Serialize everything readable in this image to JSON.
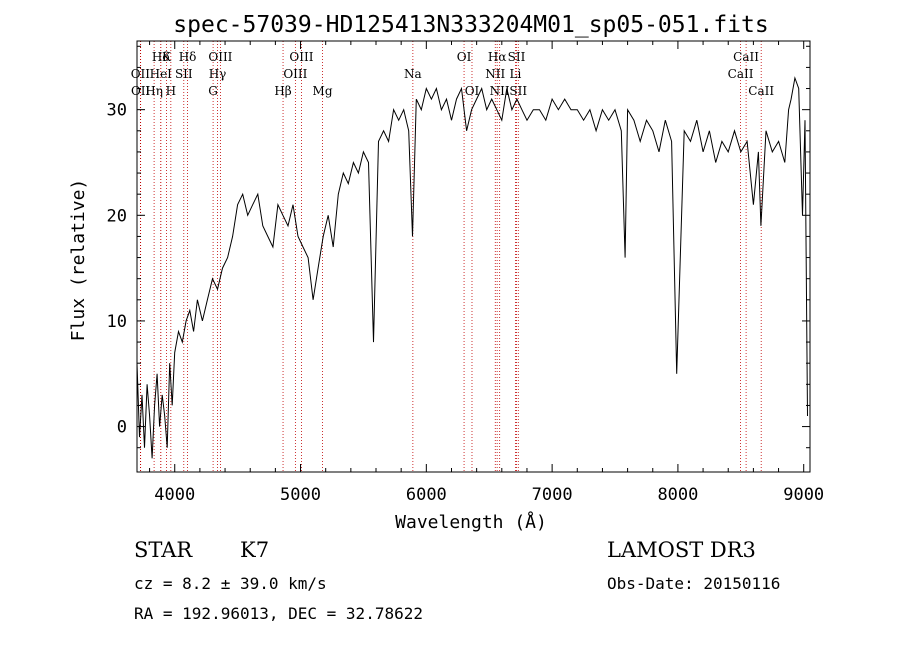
{
  "chart_data": {
    "type": "line",
    "title": "spec-57039-HD125413N333204M01_sp05-051.fits",
    "xlabel": "Wavelength (Å)",
    "ylabel": "Flux (relative)",
    "xlim": [
      3700,
      9050
    ],
    "ylim": [
      -4.3,
      36.5
    ],
    "xticks": [
      4000,
      5000,
      6000,
      7000,
      8000,
      9000
    ],
    "yticks": [
      0,
      10,
      20,
      30
    ],
    "grid": false,
    "series": [
      {
        "x": [
          3700,
          3720,
          3740,
          3760,
          3780,
          3800,
          3820,
          3840,
          3860,
          3880,
          3900,
          3920,
          3940,
          3960,
          3980,
          4000,
          4030,
          4060,
          4090,
          4120,
          4150,
          4180,
          4220,
          4260,
          4300,
          4340,
          4380,
          4420,
          4460,
          4500,
          4540,
          4580,
          4620,
          4660,
          4700,
          4740,
          4780,
          4820,
          4860,
          4900,
          4940,
          4980,
          5020,
          5060,
          5100,
          5140,
          5180,
          5220,
          5260,
          5300,
          5340,
          5380,
          5420,
          5460,
          5500,
          5540,
          5580,
          5620,
          5660,
          5700,
          5740,
          5780,
          5820,
          5860,
          5890,
          5920,
          5960,
          6000,
          6040,
          6080,
          6120,
          6160,
          6200,
          6240,
          6280,
          6320,
          6360,
          6400,
          6440,
          6480,
          6520,
          6560,
          6600,
          6640,
          6680,
          6720,
          6760,
          6800,
          6850,
          6900,
          6950,
          7000,
          7050,
          7100,
          7150,
          7200,
          7250,
          7300,
          7350,
          7400,
          7450,
          7500,
          7550,
          7580,
          7600,
          7650,
          7700,
          7750,
          7800,
          7850,
          7900,
          7950,
          7990,
          8050,
          8100,
          8150,
          8200,
          8250,
          8300,
          8350,
          8400,
          8450,
          8500,
          8550,
          8600,
          8640,
          8660,
          8700,
          8750,
          8800,
          8850,
          8880,
          8900,
          8930,
          8960,
          8990,
          9010,
          9030
        ],
        "y": [
          6,
          -1,
          3,
          -2,
          4,
          1,
          -3,
          2,
          5,
          0,
          3,
          1,
          -2,
          6,
          2,
          7,
          9,
          8,
          10,
          11,
          9,
          12,
          10,
          12,
          14,
          13,
          15,
          16,
          18,
          21,
          22,
          20,
          21,
          22,
          19,
          18,
          17,
          21,
          20,
          19,
          21,
          18,
          17,
          16,
          12,
          15,
          18,
          20,
          17,
          22,
          24,
          23,
          25,
          24,
          26,
          25,
          8,
          27,
          28,
          27,
          30,
          29,
          30,
          28,
          18,
          31,
          30,
          32,
          31,
          32,
          30,
          31,
          29,
          31,
          32,
          28,
          30,
          31,
          32,
          30,
          31,
          30,
          29,
          32,
          30,
          31,
          30,
          29,
          30,
          30,
          29,
          31,
          30,
          31,
          30,
          30,
          29,
          30,
          28,
          30,
          29,
          30,
          28,
          16,
          30,
          29,
          27,
          29,
          28,
          26,
          29,
          27,
          5,
          28,
          27,
          29,
          26,
          28,
          25,
          27,
          26,
          28,
          26,
          27,
          21,
          26,
          19,
          28,
          26,
          27,
          25,
          30,
          31,
          33,
          32,
          20,
          29,
          1
        ]
      }
    ],
    "line_labels": [
      {
        "name": "Hδ",
        "x": 3889,
        "row": 0
      },
      {
        "name": "K",
        "x": 3934,
        "row": 0
      },
      {
        "name": "Hδ",
        "x": 4102,
        "row": 0
      },
      {
        "name": "OIII",
        "x": 4363,
        "row": 0
      },
      {
        "name": "OIII",
        "x": 5007,
        "row": 0
      },
      {
        "name": "OI",
        "x": 6300,
        "row": 0
      },
      {
        "name": "Hα",
        "x": 6563,
        "row": 0
      },
      {
        "name": "SII",
        "x": 6717,
        "row": 0
      },
      {
        "name": "CaII",
        "x": 8542,
        "row": 0
      },
      {
        "name": "OII",
        "x": 3727,
        "row": 1
      },
      {
        "name": "HeI",
        "x": 3889,
        "row": 1
      },
      {
        "name": "SII",
        "x": 4072,
        "row": 1
      },
      {
        "name": "Hγ",
        "x": 4340,
        "row": 1
      },
      {
        "name": "OIII",
        "x": 4959,
        "row": 1
      },
      {
        "name": "Na",
        "x": 5893,
        "row": 1
      },
      {
        "name": "NII",
        "x": 6548,
        "row": 1
      },
      {
        "name": "Li",
        "x": 6708,
        "row": 1
      },
      {
        "name": "CaII",
        "x": 8498,
        "row": 1
      },
      {
        "name": "OII",
        "x": 3729,
        "row": 2
      },
      {
        "name": "Hη",
        "x": 3836,
        "row": 2
      },
      {
        "name": "H",
        "x": 3969,
        "row": 2
      },
      {
        "name": "G",
        "x": 4305,
        "row": 2
      },
      {
        "name": "Hβ",
        "x": 4861,
        "row": 2
      },
      {
        "name": "Mg",
        "x": 5175,
        "row": 2
      },
      {
        "name": "OI",
        "x": 6363,
        "row": 2
      },
      {
        "name": "NII",
        "x": 6583,
        "row": 2
      },
      {
        "name": "SII",
        "x": 6731,
        "row": 2
      },
      {
        "name": "CaII",
        "x": 8662,
        "row": 2
      }
    ],
    "line_marker_color": "#c00000"
  },
  "info": {
    "class_label": "STAR",
    "subclass": "K7",
    "redshift": "cz =  8.2 ± 39.0 km/s",
    "coords": "RA = 192.96013, DEC =  32.78622",
    "survey": "LAMOST DR3",
    "obs_date": "Obs-Date: 20150116"
  }
}
